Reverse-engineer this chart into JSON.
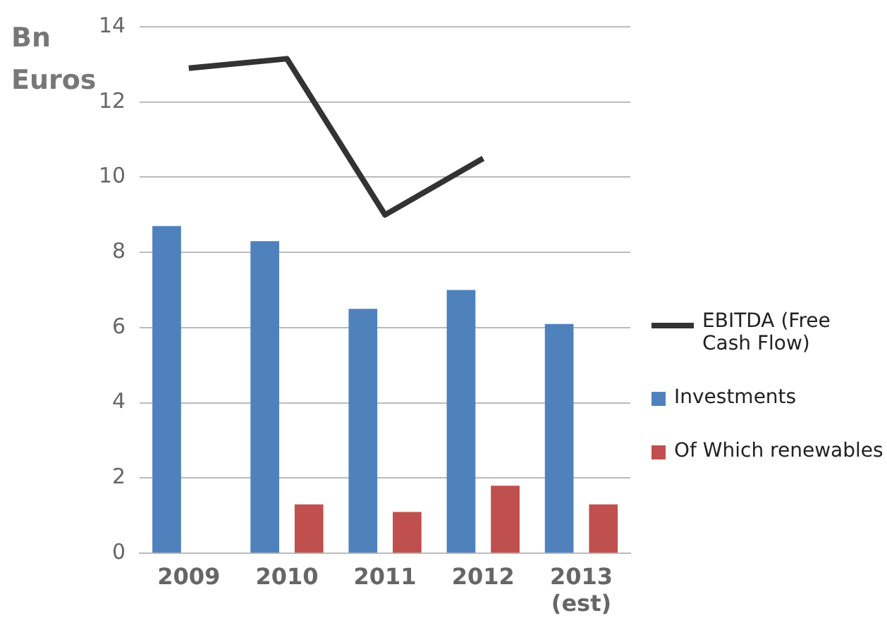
{
  "chart_data": {
    "type": "bar",
    "ylabel": "Bn Euros",
    "categories": [
      "2009",
      "2010",
      "2011",
      "2012",
      "2013 (est)"
    ],
    "series": [
      {
        "name": "EBITDA (Free Cash Flow)",
        "type": "line",
        "color": "#333333",
        "values": [
          12.9,
          13.15,
          9.0,
          10.5,
          null
        ]
      },
      {
        "name": "Investments",
        "color": "#4f81bd",
        "values": [
          8.7,
          8.3,
          6.5,
          7.0,
          6.1
        ]
      },
      {
        "name": "Of Which renewables",
        "color": "#c0504d",
        "values": [
          null,
          1.3,
          1.1,
          1.8,
          1.3
        ]
      }
    ],
    "ylim": [
      0,
      14
    ],
    "yticks": [
      0,
      2,
      4,
      6,
      8,
      10,
      12,
      14
    ],
    "grid": "y",
    "legend": "right",
    "marker": "none"
  }
}
